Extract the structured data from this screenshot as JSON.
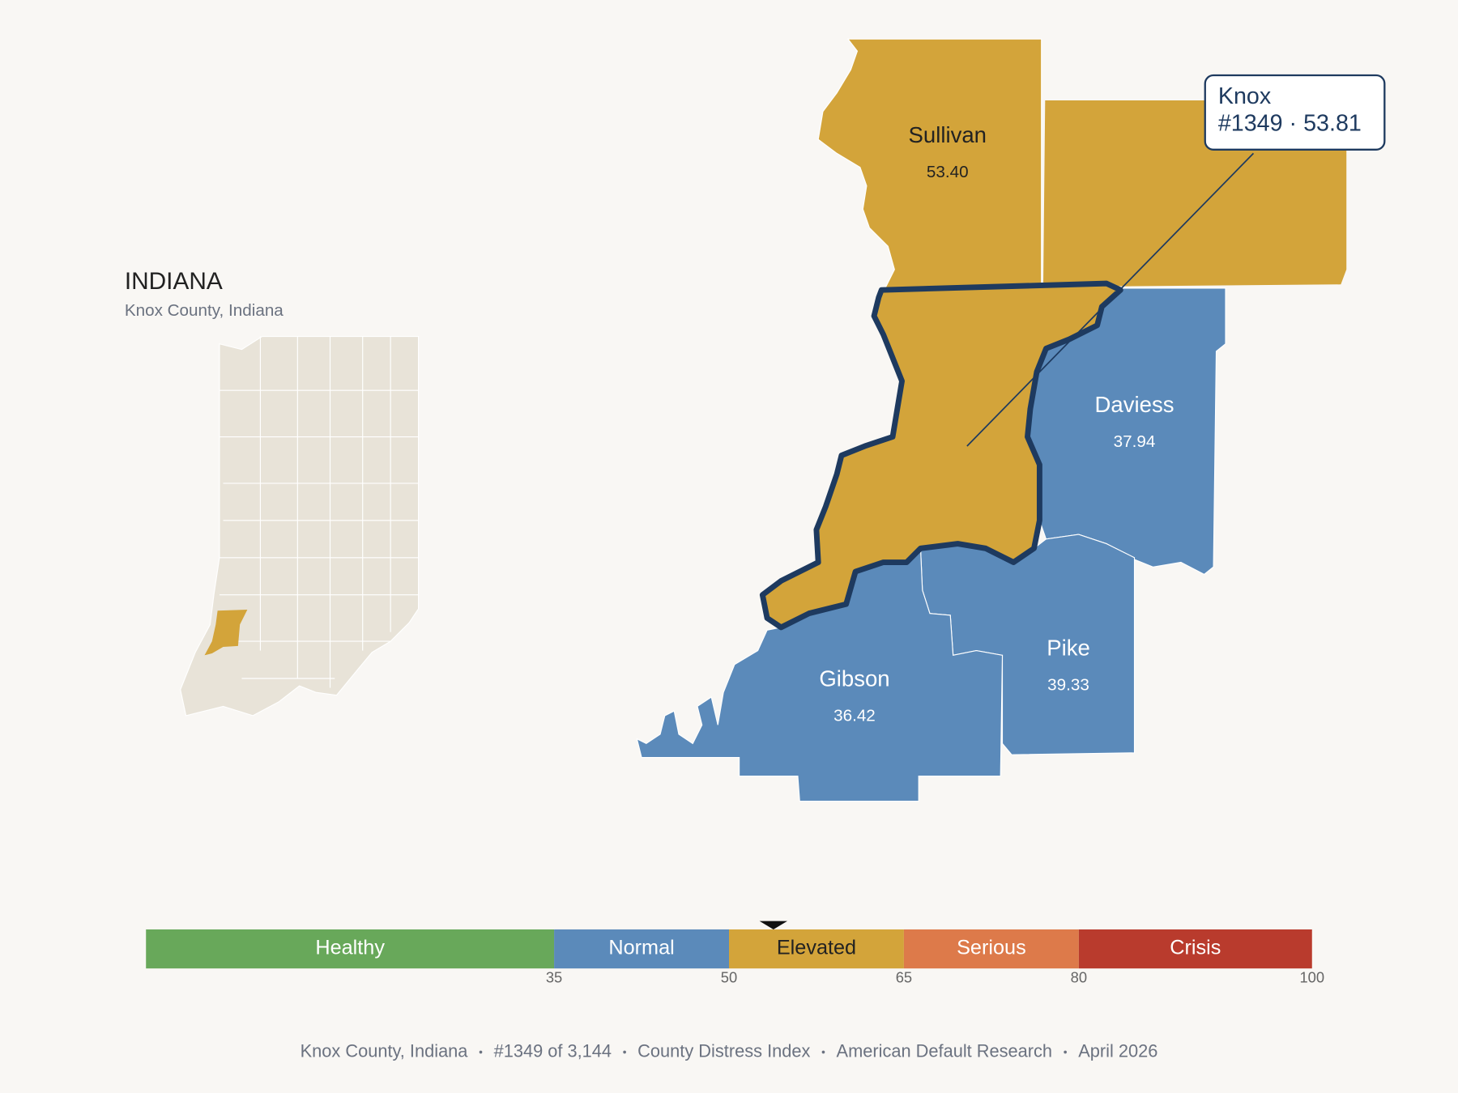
{
  "header": {
    "title": "INDIANA",
    "subtitle": "Knox County, Indiana"
  },
  "counties": [
    {
      "name": "Sullivan",
      "value": 53.4,
      "value_label": "53.40"
    },
    {
      "name": "Knox",
      "value": 53.81
    },
    {
      "name": "Daviess",
      "value": 37.94,
      "value_label": "37.94"
    },
    {
      "name": "Pike",
      "value": 39.33,
      "value_label": "39.33"
    },
    {
      "name": "Gibson",
      "value": 36.42,
      "value_label": "36.42"
    }
  ],
  "callout": {
    "title": "Knox",
    "label": "#1349 · 53.81"
  },
  "scale": {
    "lim": [
      0,
      100
    ],
    "ticks": [
      35,
      50,
      65,
      80,
      100
    ],
    "marker": 53.81,
    "bands": [
      {
        "label": "Healthy",
        "color": "#68a85a",
        "label_color": "#ffffff"
      },
      {
        "label": "Normal",
        "color": "#5b8aba",
        "label_color": "#ffffff"
      },
      {
        "label": "Elevated",
        "color": "#d3a43a",
        "label_color": "#222222"
      },
      {
        "label": "Serious",
        "color": "#dd7a4a",
        "label_color": "#ffffff"
      },
      {
        "label": "Crisis",
        "color": "#b93b2d",
        "label_color": "#ffffff"
      }
    ]
  },
  "footer": [
    "Knox County, Indiana",
    "#1349 of 3,144",
    "County Distress Index",
    "American Default Research",
    "April 2026"
  ]
}
